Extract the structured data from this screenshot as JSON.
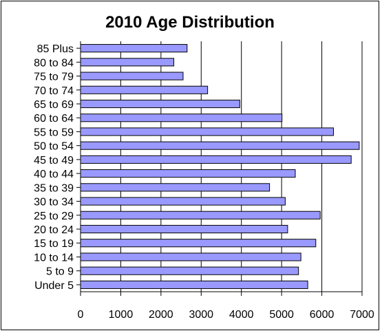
{
  "chart_data": {
    "type": "bar",
    "orientation": "horizontal",
    "title": "2010 Age Distribution",
    "xlabel": "",
    "ylabel": "",
    "categories": [
      "Under 5",
      "5 to 9",
      "10 to 14",
      "15 to 19",
      "20 to 24",
      "25 to 29",
      "30 to 34",
      "35 to 39",
      "40 to 44",
      "45 to 49",
      "50 to 54",
      "55 to 59",
      "60 to 64",
      "65 to 69",
      "70 to 74",
      "75 to 79",
      "80 to 84",
      "85 Plus"
    ],
    "values": [
      5650,
      5420,
      5480,
      5850,
      5150,
      5960,
      5090,
      4700,
      5340,
      6730,
      6930,
      6290,
      5010,
      3960,
      3160,
      2550,
      2320,
      2650
    ],
    "xlim": [
      0,
      7000
    ],
    "xticks": [
      "0",
      "1000",
      "2000",
      "3000",
      "4000",
      "5000",
      "6000",
      "7000"
    ],
    "grid": true,
    "legend": "none",
    "colors": {
      "bar_fill": "#9999ff",
      "bar_stroke": "#000000",
      "gridline": "#000000"
    }
  }
}
